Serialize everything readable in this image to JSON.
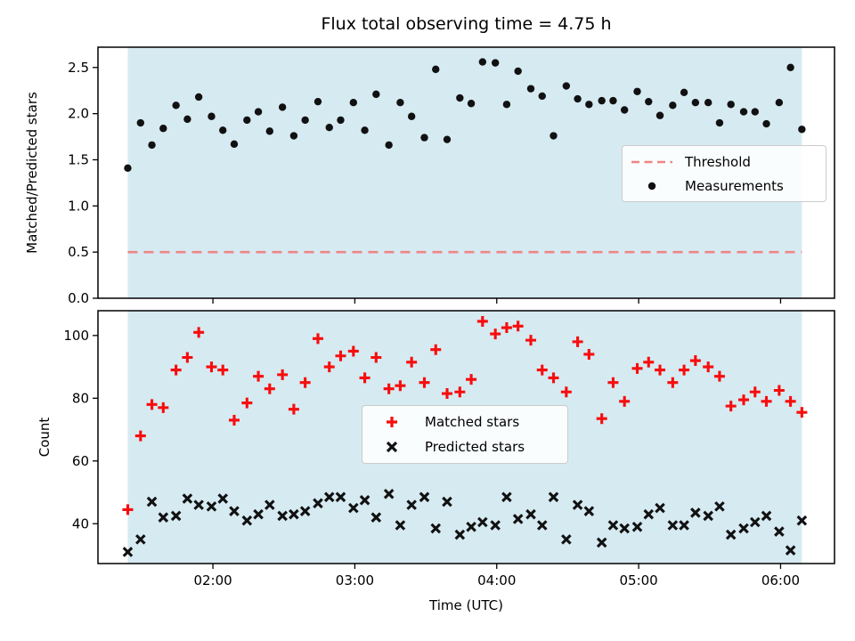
{
  "colors": {
    "shade": "#d6eaf1",
    "threshold": "#ef8585",
    "matched": "#f70d0d",
    "black_marker": "#111111",
    "axes": "#000000",
    "legend_border": "#cccccc"
  },
  "chart_data": [
    {
      "type": "scatter",
      "title": "Flux total observing time = 4.75 h",
      "ylabel": "Matched/Predicted stars",
      "xlim": [
        1.19,
        6.38
      ],
      "ylim": [
        0,
        2.72
      ],
      "xticks": [
        2,
        3,
        4,
        5,
        6
      ],
      "xtick_labels": null,
      "yticks": [
        0,
        0.5,
        1,
        1.5,
        2,
        2.5
      ],
      "ytick_labels": [
        "0.0",
        "0.5",
        "1.0",
        "1.5",
        "2.0",
        "2.5"
      ],
      "shaded_span": [
        1.4,
        6.15
      ],
      "threshold_value": 0.5,
      "legend": [
        {
          "label": "Threshold",
          "marker": "dashed-line"
        },
        {
          "label": "Measurements",
          "marker": "dot"
        }
      ],
      "x": [
        1.4,
        1.49,
        1.57,
        1.65,
        1.74,
        1.82,
        1.9,
        1.99,
        2.07,
        2.15,
        2.24,
        2.32,
        2.4,
        2.49,
        2.57,
        2.65,
        2.74,
        2.82,
        2.9,
        2.99,
        3.07,
        3.15,
        3.24,
        3.32,
        3.4,
        3.49,
        3.57,
        3.65,
        3.74,
        3.82,
        3.9,
        3.99,
        4.07,
        4.15,
        4.24,
        4.32,
        4.4,
        4.49,
        4.57,
        4.65,
        4.74,
        4.82,
        4.9,
        4.99,
        5.07,
        5.15,
        5.24,
        5.32,
        5.4,
        5.49,
        5.57,
        5.65,
        5.74,
        5.82,
        5.9,
        5.99,
        6.07,
        6.15
      ],
      "series": [
        {
          "name": "Measurements",
          "marker": "dot",
          "values": [
            1.41,
            1.9,
            1.66,
            1.84,
            2.09,
            1.94,
            2.18,
            1.97,
            1.82,
            1.67,
            1.93,
            2.02,
            1.81,
            2.07,
            1.76,
            1.93,
            2.13,
            1.85,
            1.93,
            2.12,
            1.82,
            2.21,
            1.66,
            2.12,
            1.97,
            1.74,
            2.48,
            1.72,
            2.17,
            2.11,
            2.56,
            2.55,
            2.1,
            2.46,
            2.27,
            2.19,
            1.76,
            2.3,
            2.16,
            2.1,
            2.14,
            2.14,
            2.04,
            2.24,
            2.13,
            1.98,
            2.09,
            2.23,
            2.12,
            2.12,
            1.9,
            2.1,
            2.02,
            2.02,
            1.89,
            2.12,
            2.5,
            1.83
          ]
        }
      ]
    },
    {
      "type": "scatter",
      "xlabel": "Time (UTC)",
      "ylabel": "Count",
      "xlim": [
        1.19,
        6.38
      ],
      "ylim": [
        27.3,
        107.9
      ],
      "xticks": [
        2,
        3,
        4,
        5,
        6
      ],
      "xtick_labels": [
        "02:00",
        "03:00",
        "04:00",
        "05:00",
        "06:00"
      ],
      "yticks": [
        40,
        60,
        80,
        100
      ],
      "ytick_labels": [
        "40",
        "60",
        "80",
        "100"
      ],
      "shaded_span": [
        1.4,
        6.15
      ],
      "threshold_value": null,
      "legend": [
        {
          "label": "Matched stars",
          "marker": "plus"
        },
        {
          "label": "Predicted stars",
          "marker": "cross"
        }
      ],
      "x": [
        1.4,
        1.49,
        1.57,
        1.65,
        1.74,
        1.82,
        1.9,
        1.99,
        2.07,
        2.15,
        2.24,
        2.32,
        2.4,
        2.49,
        2.57,
        2.65,
        2.74,
        2.82,
        2.9,
        2.99,
        3.07,
        3.15,
        3.24,
        3.32,
        3.4,
        3.49,
        3.57,
        3.65,
        3.74,
        3.82,
        3.9,
        3.99,
        4.07,
        4.15,
        4.24,
        4.32,
        4.4,
        4.49,
        4.57,
        4.65,
        4.74,
        4.82,
        4.9,
        4.99,
        5.07,
        5.15,
        5.24,
        5.32,
        5.4,
        5.49,
        5.57,
        5.65,
        5.74,
        5.82,
        5.9,
        5.99,
        6.07,
        6.15
      ],
      "series": [
        {
          "name": "Matched stars",
          "marker": "plus",
          "values": [
            44.5,
            68,
            78,
            77,
            89,
            93,
            101,
            90,
            89,
            73,
            78.5,
            87,
            83,
            87.5,
            76.5,
            85,
            99,
            90,
            93.5,
            95,
            86.5,
            93,
            83,
            84,
            91.5,
            85,
            95.5,
            81.5,
            82,
            86,
            104.5,
            100.5,
            102.5,
            103,
            98.5,
            89,
            86.5,
            82,
            98,
            94,
            73.5,
            85,
            79,
            89.5,
            91.5,
            89,
            85,
            89,
            92,
            90,
            87,
            77.5,
            79.5,
            82,
            79,
            82.5,
            79,
            75.5
          ]
        },
        {
          "name": "Predicted stars",
          "marker": "cross",
          "values": [
            31,
            35,
            47,
            42,
            42.5,
            48,
            46,
            45.5,
            48,
            44,
            41,
            43,
            46,
            42.5,
            43,
            44,
            46.5,
            48.5,
            48.5,
            45,
            47.5,
            42,
            49.5,
            39.5,
            46,
            48.5,
            38.5,
            47,
            36.5,
            39,
            40.5,
            39.5,
            48.5,
            41.5,
            43,
            39.5,
            48.5,
            35,
            46,
            44,
            34,
            39.5,
            38.5,
            39,
            43,
            45,
            39.5,
            39.5,
            43.5,
            42.5,
            45.5,
            36.5,
            38.5,
            40.5,
            42.5,
            37.5,
            31.5,
            41
          ]
        }
      ]
    }
  ]
}
